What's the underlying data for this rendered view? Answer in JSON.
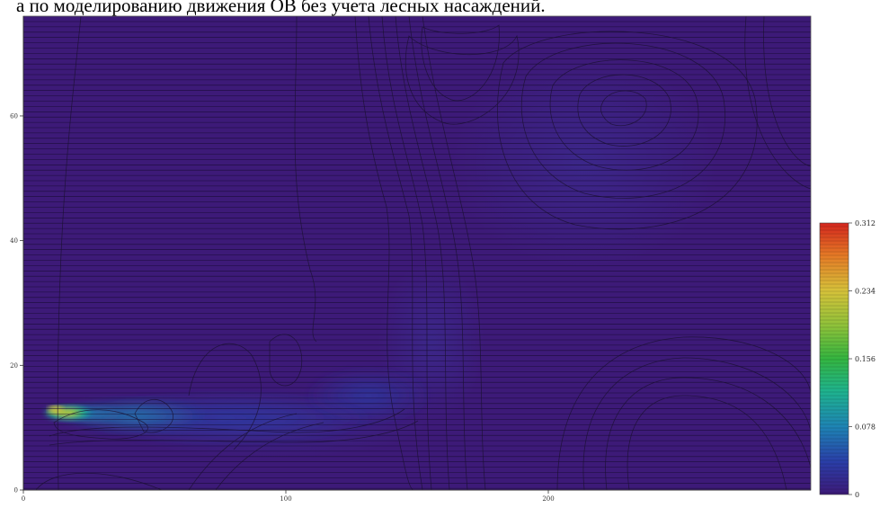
{
  "page": {
    "caption": "а по моделированию движения ОВ без учета лесных насаждений."
  },
  "chart_data": {
    "type": "heatmap",
    "title": "",
    "xlabel": "",
    "ylabel": "",
    "xlim": [
      0,
      300
    ],
    "ylim": [
      0,
      76
    ],
    "x_ticks": [
      0,
      100,
      200
    ],
    "y_ticks": [
      0,
      20,
      40,
      60
    ],
    "grid": false,
    "contour_lines": true,
    "colorscale": {
      "min": 0,
      "max": 0.312,
      "tick_values": [
        0,
        0.078,
        0.156,
        0.234,
        0.312
      ],
      "tick_labels": [
        "0",
        "0.078",
        "0.156",
        "0.234",
        "0.312"
      ],
      "colors": [
        "#3d1a78",
        "#2a3ea8",
        "#1e84b4",
        "#1fb38e",
        "#34b540",
        "#8ec23a",
        "#d6c23a",
        "#e57a26",
        "#d4261e"
      ]
    },
    "plume": [
      {
        "x": 10,
        "y": 9,
        "value": 0.25
      },
      {
        "x": 15,
        "y": 8.5,
        "value": 0.2
      },
      {
        "x": 22,
        "y": 8,
        "value": 0.14
      },
      {
        "x": 30,
        "y": 8,
        "value": 0.1
      },
      {
        "x": 45,
        "y": 8,
        "value": 0.07
      },
      {
        "x": 60,
        "y": 8,
        "value": 0.05
      },
      {
        "x": 80,
        "y": 7,
        "value": 0.04
      },
      {
        "x": 100,
        "y": 7,
        "value": 0.035
      },
      {
        "x": 125,
        "y": 10,
        "value": 0.03
      },
      {
        "x": 145,
        "y": 17,
        "value": 0.025
      }
    ]
  }
}
